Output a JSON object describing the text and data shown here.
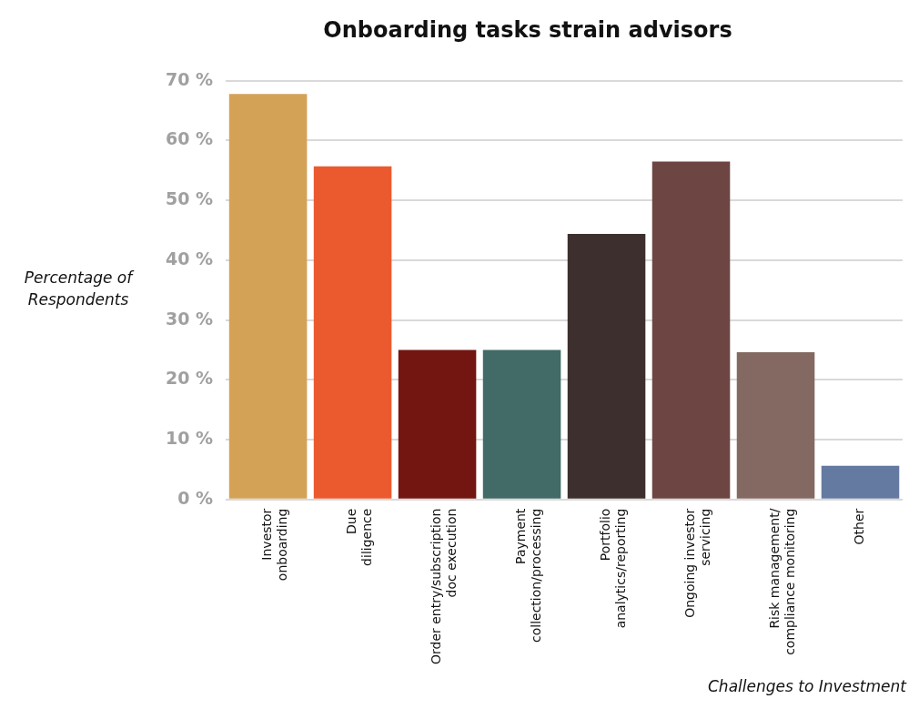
{
  "chart_data": {
    "type": "bar",
    "title": "Onboarding tasks strain advisors",
    "xlabel": "Challenges to Investment",
    "ylabel": "Percentage of\nRespondents",
    "categories": [
      "Investor\nonboarding",
      "Due\ndiligence",
      "Order entry/subscription\ndoc execution",
      "Payment\ncollection/processing",
      "Portfolio\nanalytics/reporting",
      "Ongoing investor\nservicing",
      "Risk management/\ncompliance monitoring",
      "Other"
    ],
    "values": [
      67.8,
      55.7,
      25,
      25,
      44.4,
      56.5,
      24.6,
      5.6
    ],
    "colors": [
      "#d4a257",
      "#eb5a2f",
      "#731612",
      "#426a67",
      "#3d2f2d",
      "#6d4543",
      "#846862",
      "#657aa1"
    ],
    "ylim": [
      0,
      70
    ],
    "yticks": [
      {
        "value": 0,
        "label": "0 %"
      },
      {
        "value": 10,
        "label": "10 %"
      },
      {
        "value": 20,
        "label": "20 %"
      },
      {
        "value": 30,
        "label": "30 %"
      },
      {
        "value": 40,
        "label": "40 %"
      },
      {
        "value": 50,
        "label": "50 %"
      },
      {
        "value": 60,
        "label": "60 %"
      },
      {
        "value": 70,
        "label": "70 %"
      }
    ],
    "grid": "y",
    "legend": false
  }
}
